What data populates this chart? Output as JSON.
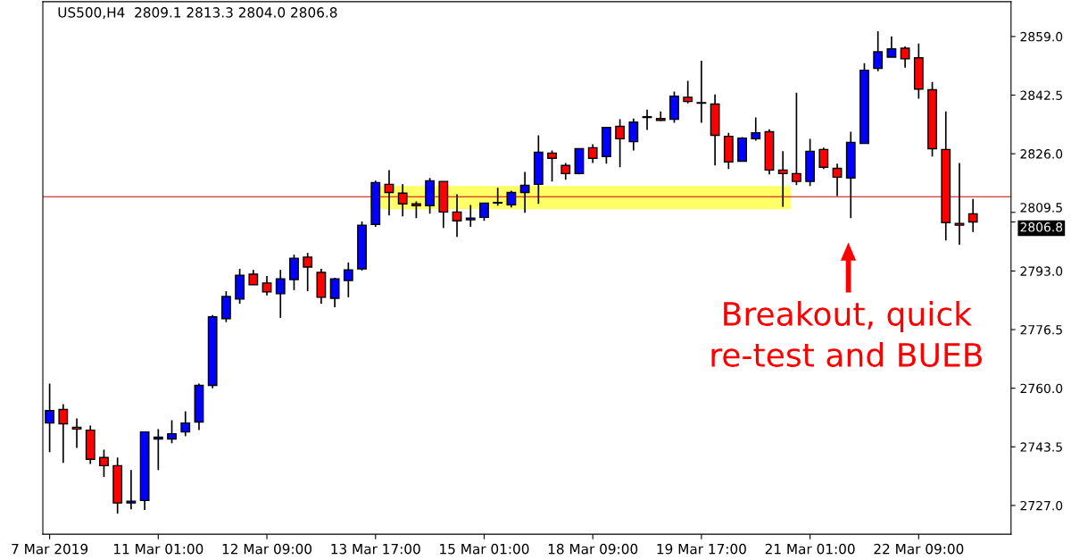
{
  "chart_data": {
    "type": "candlestick",
    "title": "US500,H4  2809.1 2813.3 2804.0 2806.8",
    "categories": [
      "7 Mar 2019",
      null,
      null,
      null,
      null,
      null,
      null,
      null,
      "11 Mar 01:00",
      null,
      null,
      null,
      null,
      null,
      null,
      null,
      "12 Mar 09:00",
      null,
      null,
      null,
      null,
      null,
      null,
      null,
      "13 Mar 17:00",
      null,
      null,
      null,
      null,
      null,
      null,
      null,
      "15 Mar 01:00",
      null,
      null,
      null,
      null,
      null,
      null,
      null,
      "18 Mar 09:00",
      null,
      null,
      null,
      null,
      null,
      null,
      null,
      "19 Mar 17:00",
      null,
      null,
      null,
      null,
      null,
      null,
      null,
      "21 Mar 01:00",
      null,
      null,
      null,
      null,
      null,
      null,
      null,
      "22 Mar 09:00",
      null,
      null,
      null,
      null
    ],
    "ohlc": [
      [
        2750.2,
        2761.3,
        2742.0,
        2753.7
      ],
      [
        2754.0,
        2755.5,
        2739.0,
        2750.0
      ],
      [
        2749.0,
        2751.5,
        2743.2,
        2748.5
      ],
      [
        2748.2,
        2749.5,
        2738.7,
        2740.0
      ],
      [
        2740.5,
        2742.7,
        2735.0,
        2738.2
      ],
      [
        2738.2,
        2740.5,
        2724.7,
        2727.7
      ],
      [
        2727.7,
        2737.0,
        2725.9,
        2728.2
      ],
      [
        2728.4,
        2747.7,
        2725.7,
        2747.7
      ],
      [
        2745.7,
        2748.5,
        2737.0,
        2746.2
      ],
      [
        2745.7,
        2751.0,
        2744.5,
        2747.2
      ],
      [
        2747.7,
        2753.5,
        2746.5,
        2750.2
      ],
      [
        2750.5,
        2761.3,
        2748.2,
        2760.8
      ],
      [
        2760.8,
        2780.6,
        2760.0,
        2780.1
      ],
      [
        2779.6,
        2787.3,
        2778.6,
        2785.8
      ],
      [
        2785.1,
        2793.6,
        2783.8,
        2791.8
      ],
      [
        2792.1,
        2793.3,
        2789.1,
        2789.1
      ],
      [
        2789.6,
        2791.6,
        2786.1,
        2787.1
      ],
      [
        2786.6,
        2793.3,
        2779.8,
        2790.8
      ],
      [
        2790.6,
        2797.6,
        2787.6,
        2796.6
      ],
      [
        2796.9,
        2798.1,
        2787.3,
        2794.1
      ],
      [
        2792.6,
        2793.6,
        2783.8,
        2785.6
      ],
      [
        2785.3,
        2791.1,
        2782.8,
        2790.8
      ],
      [
        2790.3,
        2795.4,
        2785.6,
        2793.3
      ],
      [
        2793.6,
        2806.9,
        2793.1,
        2805.9
      ],
      [
        2806.1,
        2818.4,
        2805.4,
        2817.9
      ],
      [
        2817.4,
        2821.4,
        2808.6,
        2815.1
      ],
      [
        2814.9,
        2817.4,
        2808.4,
        2811.9
      ],
      [
        2811.9,
        2812.6,
        2807.9,
        2811.4
      ],
      [
        2811.4,
        2819.2,
        2809.1,
        2818.4
      ],
      [
        2818.2,
        2818.2,
        2805.1,
        2809.6
      ],
      [
        2809.6,
        2814.6,
        2802.6,
        2807.1
      ],
      [
        2807.4,
        2811.6,
        2805.4,
        2807.9
      ],
      [
        2808.1,
        2812.1,
        2807.1,
        2812.1
      ],
      [
        2812.1,
        2816.4,
        2811.4,
        2812.3
      ],
      [
        2811.6,
        2815.6,
        2810.9,
        2815.1
      ],
      [
        2815.1,
        2820.9,
        2809.4,
        2817.1
      ],
      [
        2817.4,
        2831.2,
        2811.9,
        2826.4
      ],
      [
        2826.2,
        2826.9,
        2818.2,
        2824.7
      ],
      [
        2822.7,
        2823.4,
        2818.7,
        2820.4
      ],
      [
        2820.4,
        2827.4,
        2820.2,
        2827.4
      ],
      [
        2827.7,
        2828.7,
        2823.4,
        2824.7
      ],
      [
        2825.2,
        2833.4,
        2823.2,
        2833.4
      ],
      [
        2833.7,
        2835.7,
        2822.2,
        2830.2
      ],
      [
        2829.4,
        2835.9,
        2826.9,
        2834.9
      ],
      [
        2836.2,
        2838.4,
        2832.7,
        2836.4
      ],
      [
        2835.9,
        2837.9,
        2835.2,
        2835.4
      ],
      [
        2835.7,
        2843.5,
        2834.7,
        2842.2
      ],
      [
        2841.9,
        2846.5,
        2840.2,
        2840.7
      ],
      [
        2840.2,
        2852.2,
        2834.7,
        2840.4
      ],
      [
        2840.0,
        2842.7,
        2822.7,
        2831.2
      ],
      [
        2830.9,
        2831.9,
        2821.7,
        2823.7
      ],
      [
        2823.9,
        2830.7,
        2823.9,
        2830.4
      ],
      [
        2830.2,
        2836.2,
        2829.7,
        2831.9
      ],
      [
        2832.2,
        2832.9,
        2820.2,
        2821.4
      ],
      [
        2821.4,
        2826.7,
        2811.1,
        2820.4
      ],
      [
        2820.4,
        2843.2,
        2817.2,
        2818.2
      ],
      [
        2818.2,
        2830.2,
        2816.9,
        2826.7
      ],
      [
        2827.2,
        2827.7,
        2821.7,
        2822.2
      ],
      [
        2821.9,
        2823.2,
        2814.1,
        2819.4
      ],
      [
        2819.2,
        2832.2,
        2807.9,
        2829.2
      ],
      [
        2828.9,
        2851.5,
        2828.9,
        2849.5
      ],
      [
        2850.0,
        2860.5,
        2849.2,
        2854.7
      ],
      [
        2853.2,
        2859.0,
        2853.2,
        2855.5
      ],
      [
        2855.7,
        2856.2,
        2850.2,
        2852.7
      ],
      [
        2853.0,
        2857.0,
        2841.5,
        2844.2
      ],
      [
        2844.0,
        2846.2,
        2825.2,
        2827.4
      ],
      [
        2827.2,
        2837.9,
        2801.6,
        2806.6
      ],
      [
        2806.4,
        2823.4,
        2800.4,
        2805.9
      ],
      [
        2809.1,
        2813.3,
        2804.0,
        2806.8
      ]
    ],
    "colors": [
      "#0000ff",
      "#ff0000",
      "#ff0000",
      "#ff0000",
      "#ff0000",
      "#ff0000",
      "#0000ff",
      "#0000ff",
      "#0000ff",
      "#0000ff",
      "#0000ff",
      "#0000ff",
      "#0000ff",
      "#0000ff",
      "#0000ff",
      "#ff0000",
      "#ff0000",
      "#0000ff",
      "#0000ff",
      "#ff0000",
      "#ff0000",
      "#0000ff",
      "#0000ff",
      "#0000ff",
      "#0000ff",
      "#ff0000",
      "#ff0000",
      "#ff0000",
      "#0000ff",
      "#ff0000",
      "#ff0000",
      "#0000ff",
      "#0000ff",
      "#0000ff",
      "#0000ff",
      "#0000ff",
      "#0000ff",
      "#ff0000",
      "#ff0000",
      "#0000ff",
      "#ff0000",
      "#0000ff",
      "#ff0000",
      "#0000ff",
      "#0000ff",
      "#ff0000",
      "#0000ff",
      "#ff0000",
      "#0000ff",
      "#ff0000",
      "#ff0000",
      "#0000ff",
      "#0000ff",
      "#ff0000",
      "#ff0000",
      "#ff0000",
      "#0000ff",
      "#ff0000",
      "#ff0000",
      "#0000ff",
      "#0000ff",
      "#0000ff",
      "#0000ff",
      "#ff0000",
      "#ff0000",
      "#ff0000",
      "#ff0000",
      "#ff0000",
      "#ff0000"
    ],
    "ylim": [
      2718.9,
      2868.8
    ],
    "yticks": [
      {
        "value": 2727.0,
        "label": "2727.0"
      },
      {
        "value": 2743.5,
        "label": "2743.5"
      },
      {
        "value": 2760.0,
        "label": "2760.0"
      },
      {
        "value": 2776.5,
        "label": "2776.5"
      },
      {
        "value": 2793.0,
        "label": "2793.0"
      },
      {
        "value": 2809.5,
        "label": "2809.5"
      },
      {
        "value": 2826.0,
        "label": "2826.0"
      },
      {
        "value": 2842.5,
        "label": "2842.5"
      },
      {
        "value": 2859.0,
        "label": "2859.0"
      },
      {
        "value": 2806.8,
        "label": "2806.8"
      }
    ],
    "ref_lines": [
      {
        "axis": "y",
        "value": 2813.9,
        "color": "#cc0000"
      }
    ],
    "bands": [
      {
        "axis": "y",
        "from": 2810.4,
        "to": 2816.9,
        "color": "#ffff66"
      }
    ],
    "annotations": [
      "Breakout, quick\nre-test and BUEB"
    ],
    "grid": false
  }
}
